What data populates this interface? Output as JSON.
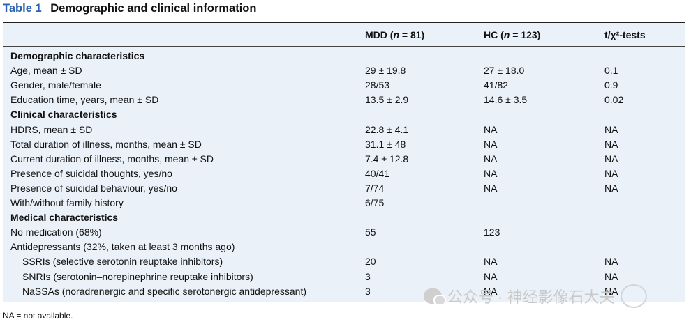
{
  "title": {
    "label": "Table 1",
    "text": "Demographic and clinical information"
  },
  "columns": [
    "",
    "MDD (n = 81)",
    "HC (n = 123)",
    "t/χ²-tests"
  ],
  "rows": [
    {
      "type": "section",
      "cells": [
        "Demographic characteristics",
        "",
        "",
        ""
      ]
    },
    {
      "cells": [
        "Age, mean ± SD",
        "29 ± 19.8",
        "27 ± 18.0",
        "0.1"
      ]
    },
    {
      "cells": [
        "Gender, male/female",
        "28/53",
        "41/82",
        "0.9"
      ]
    },
    {
      "cells": [
        "Education time, years, mean ± SD",
        "13.5 ± 2.9",
        "14.6 ± 3.5",
        "0.02"
      ]
    },
    {
      "type": "section",
      "cells": [
        "Clinical characteristics",
        "",
        "",
        ""
      ]
    },
    {
      "cells": [
        "HDRS, mean ± SD",
        "22.8 ± 4.1",
        "NA",
        "NA"
      ]
    },
    {
      "cells": [
        "Total duration of illness, months, mean ± SD",
        "31.1 ± 48",
        "NA",
        "NA"
      ]
    },
    {
      "cells": [
        "Current duration of illness, months, mean ± SD",
        "7.4 ± 12.8",
        "NA",
        "NA"
      ]
    },
    {
      "cells": [
        "Presence of suicidal thoughts, yes/no",
        "40/41",
        "NA",
        "NA"
      ]
    },
    {
      "cells": [
        "Presence of suicidal behaviour, yes/no",
        "7/74",
        "NA",
        "NA"
      ]
    },
    {
      "cells": [
        "With/without family history",
        "6/75",
        "",
        ""
      ]
    },
    {
      "type": "section",
      "cells": [
        "Medical characteristics",
        "",
        "",
        ""
      ]
    },
    {
      "cells": [
        "No medication (68%)",
        "55",
        "123",
        ""
      ]
    },
    {
      "cells": [
        "Antidepressants (32%, taken at least 3 months ago)",
        "",
        "",
        ""
      ]
    },
    {
      "indent": true,
      "cells": [
        "SSRIs (selective serotonin reuptake inhibitors)",
        "20",
        "NA",
        "NA"
      ]
    },
    {
      "indent": true,
      "cells": [
        "SNRIs (serotonin–norepinephrine reuptake inhibitors)",
        "3",
        "NA",
        "NA"
      ]
    },
    {
      "indent": true,
      "cells": [
        "NaSSAs (noradrenergic and specific serotonergic antidepressant)",
        "3",
        "NA",
        "NA"
      ]
    }
  ],
  "footnote": "NA = not available.",
  "watermark": {
    "text": "公众号 · 神经影像石大夫",
    "icon": "wechat-icon"
  }
}
